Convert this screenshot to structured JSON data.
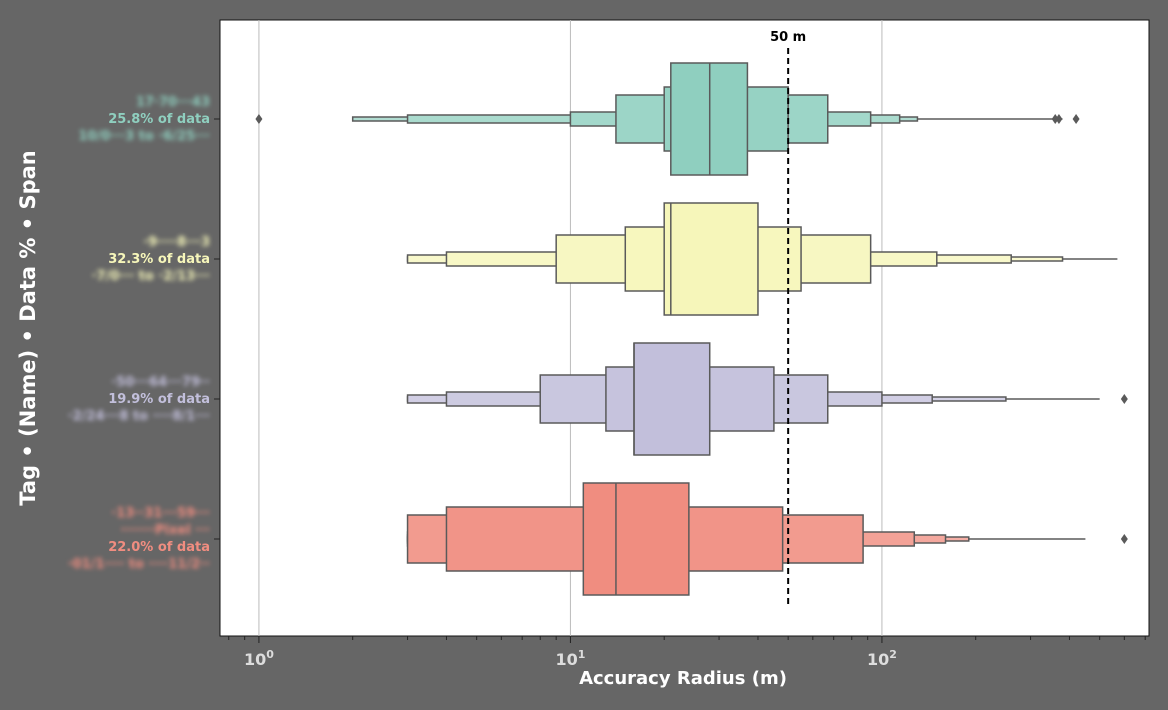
{
  "chart_data": {
    "type": "boxen",
    "orientation": "horizontal",
    "xlabel": "Accuracy Radius (m)",
    "ylabel": "Tag • (Name) • Data % • Span",
    "xscale": "log",
    "xlim": [
      0.75,
      720
    ],
    "x_ticks": [
      1,
      10,
      100
    ],
    "x_tick_labels": [
      "10^0",
      "10^1",
      "10^2"
    ],
    "grid": "x",
    "reference_line": {
      "x": 50,
      "label": "50 m",
      "style": "dashed"
    },
    "categories": [
      {
        "label_lines": [
          "17·70···43",
          "25.8% of data",
          "10/0···3 to ·6/25···"
        ],
        "blurred_lines": [
          0,
          2
        ],
        "color": "#8fcfbf",
        "median": 28,
        "boxes": [
          [
            21,
            37
          ],
          [
            20,
            50
          ],
          [
            14,
            67
          ],
          [
            10,
            92
          ],
          [
            3,
            114
          ],
          [
            2,
            130
          ]
        ],
        "whisker": [
          2,
          380
        ],
        "outliers": [
          1,
          360,
          370,
          420
        ]
      },
      {
        "label_lines": [
          "·9····8···3",
          "32.3% of data",
          "·7/0··· to ·2/13···"
        ],
        "blurred_lines": [
          0,
          2
        ],
        "color": "#f6f6ba",
        "median": 21,
        "boxes": [
          [
            20,
            40
          ],
          [
            15,
            55
          ],
          [
            9,
            92
          ],
          [
            4,
            150
          ],
          [
            3,
            260
          ],
          [
            3,
            380
          ]
        ],
        "whisker": [
          3,
          570
        ],
        "outliers": []
      },
      {
        "label_lines": [
          "·50···64···79··",
          "19.9% of data",
          "·2/24···8 to ····8/1···"
        ],
        "blurred_lines": [
          0,
          2
        ],
        "color": "#c2bfdb",
        "median": 16,
        "boxes": [
          [
            16,
            28
          ],
          [
            13,
            45
          ],
          [
            8,
            67
          ],
          [
            4,
            100
          ],
          [
            3,
            145
          ],
          [
            3,
            250
          ]
        ],
        "whisker": [
          3,
          500
        ],
        "outliers": [
          600
        ]
      },
      {
        "label_lines": [
          "·13··31···59···",
          "·······Pixel ···",
          "22.0% of data",
          "·01/1···· to ····11/2··"
        ],
        "blurred_lines": [
          0,
          1,
          3
        ],
        "color": "#f08d80",
        "median": 14,
        "boxes": [
          [
            11,
            24
          ],
          [
            4,
            48
          ],
          [
            3,
            87
          ],
          [
            3,
            127
          ],
          [
            3,
            160
          ],
          [
            3,
            190
          ]
        ],
        "whisker": [
          3,
          450
        ],
        "outliers": [
          600
        ]
      }
    ]
  },
  "colors": {
    "background": "#666666",
    "plot_background": "#ffffff",
    "axis_text": "#dddddd",
    "label_text": "#ffffff",
    "edge": "#5a5a5a"
  }
}
